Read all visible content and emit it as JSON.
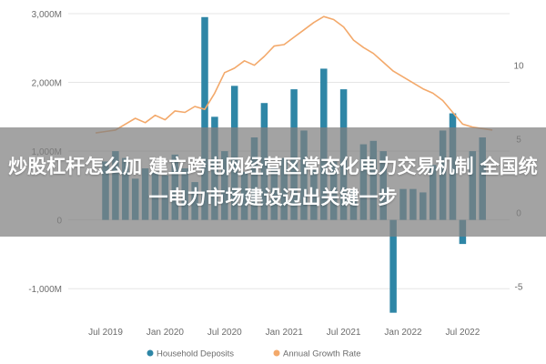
{
  "overlay": {
    "headline": "炒股杠杆怎么加 建立跨电网经营区常态化电力交易机制 全国统一电力市场建设迈出关键一步"
  },
  "colors": {
    "bar": "#2e86a6",
    "line": "#f3a96b",
    "grid": "#e6e6e6",
    "overlay": "#808080"
  },
  "chart_data": {
    "type": "bar+line",
    "title": "",
    "x_ticks": [
      "Jul 2019",
      "Jan 2020",
      "Jul 2020",
      "Jan 2021",
      "Jul 2021",
      "Jan 2022",
      "Jul 2022"
    ],
    "x_tick_month_index": [
      0,
      6,
      12,
      18,
      24,
      30,
      36
    ],
    "left_axis": {
      "ylim": [
        -1500,
        3000
      ],
      "ticks": [
        3000,
        2000,
        1000,
        0,
        -1000
      ],
      "tick_labels": [
        "3,000M",
        "2,000M",
        "1,000M",
        "0",
        "-1,000M"
      ]
    },
    "right_axis": {
      "ylim": [
        -7.5,
        13.5
      ],
      "ticks": [
        10,
        5,
        0,
        -5
      ],
      "tick_labels": [
        "10",
        "5",
        "0",
        "-5"
      ]
    },
    "series": [
      {
        "name": "Household Deposits",
        "type": "bar",
        "axis": "left",
        "values": [
          850,
          1000,
          900,
          600,
          750,
          700,
          650,
          950,
          750,
          550,
          2950,
          1500,
          1000,
          1950,
          700,
          1200,
          1700,
          750,
          900,
          1900,
          1300,
          750,
          2200,
          850,
          1900,
          450,
          1100,
          1150,
          1000,
          -1350,
          450,
          450,
          400,
          800,
          1300,
          1550,
          -350,
          1000,
          1200
        ]
      },
      {
        "name": "Annual Growth Rate",
        "type": "line",
        "axis": "right",
        "x_start_index": -1,
        "values": [
          5.4,
          5.5,
          5.6,
          6.0,
          6.4,
          6.1,
          6.6,
          6.3,
          6.9,
          6.8,
          7.2,
          7.0,
          8.1,
          9.5,
          9.8,
          10.3,
          10.0,
          10.6,
          11.3,
          11.4,
          11.9,
          12.4,
          12.9,
          13.3,
          13.1,
          12.6,
          11.7,
          11.2,
          10.8,
          10.2,
          9.6,
          9.2,
          8.8,
          8.4,
          8.1,
          7.6,
          6.8,
          6.0,
          5.8,
          5.7,
          5.6
        ]
      }
    ],
    "legend": {
      "position": "bottom-center",
      "entries": [
        "Household Deposits",
        "Annual Growth Rate"
      ]
    }
  }
}
